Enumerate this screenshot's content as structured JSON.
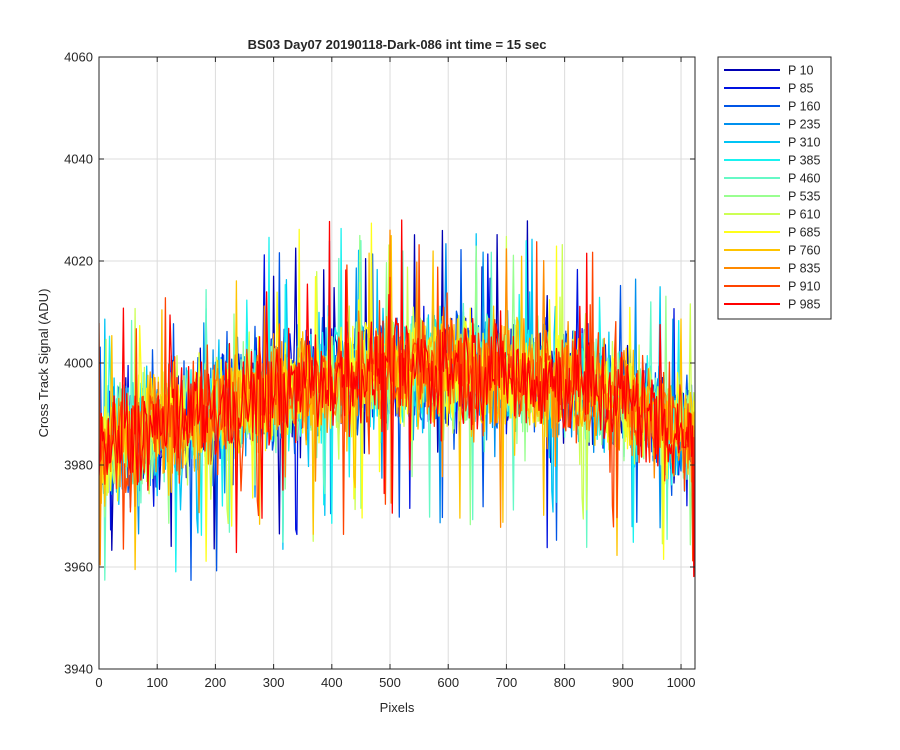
{
  "chart_data": {
    "type": "line",
    "title": "BS03 Day07 20190118-Dark-086 int time = 15 sec",
    "xlabel": "Pixels",
    "ylabel": "Cross Track Signal (ADU)",
    "xlim": [
      0,
      1024
    ],
    "ylim": [
      3940,
      4060
    ],
    "xticks": [
      0,
      100,
      200,
      300,
      400,
      500,
      600,
      700,
      800,
      900,
      1000
    ],
    "yticks": [
      3940,
      3960,
      3980,
      4000,
      4020,
      4040,
      4060
    ],
    "grid": true,
    "legend_position": "outside-top-right",
    "trend": {
      "x": [
        0,
        100,
        200,
        300,
        400,
        500,
        600,
        700,
        800,
        900,
        1024
      ],
      "y": [
        3983,
        3987,
        3991,
        3994,
        3997,
        3999,
        3999,
        3998,
        3996,
        3993,
        3985
      ]
    },
    "noise_amplitude_adu": 14,
    "series": [
      {
        "name": "P 10",
        "color": "#0000b3"
      },
      {
        "name": "P 85",
        "color": "#0012e0"
      },
      {
        "name": "P 160",
        "color": "#0055e6"
      },
      {
        "name": "P 235",
        "color": "#0090ee"
      },
      {
        "name": "P 310",
        "color": "#00c4f5"
      },
      {
        "name": "P 385",
        "color": "#19f2f0"
      },
      {
        "name": "P 460",
        "color": "#66f9c6"
      },
      {
        "name": "P 535",
        "color": "#99ff90"
      },
      {
        "name": "P 610",
        "color": "#ccff55"
      },
      {
        "name": "P 685",
        "color": "#ffff1a"
      },
      {
        "name": "P 760",
        "color": "#ffc400"
      },
      {
        "name": "P 835",
        "color": "#ff8a00"
      },
      {
        "name": "P 910",
        "color": "#ff4400"
      },
      {
        "name": "P 985",
        "color": "#ff0000"
      }
    ]
  }
}
